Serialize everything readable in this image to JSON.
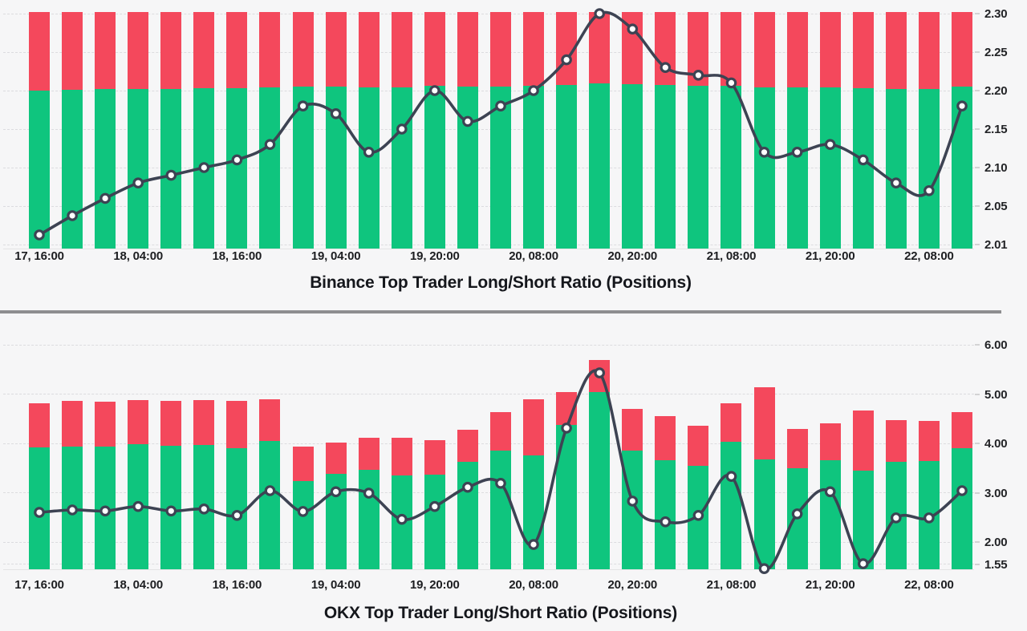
{
  "colors": {
    "long_green": "#0fc57e",
    "short_red": "#f4485c",
    "line": "#3d4353",
    "marker_fill": "#ffffff",
    "axis_text": "#222326",
    "title_text": "#15171c",
    "divider": "#8e8e90",
    "background": "#f6f6f7"
  },
  "chart_data": [
    {
      "type": "bar",
      "combo": "percent_stacked_bars_with_ratio_line",
      "title": "Binance Top Trader Long/Short Ratio (Positions)",
      "legend_position": "none",
      "grid": "dashed-horizontal",
      "y_axis": {
        "position": "right",
        "min": 2.01,
        "max": 2.3,
        "tick_labels": [
          "2.30",
          "2.25",
          "2.20",
          "2.15",
          "2.10",
          "2.05",
          "2.01"
        ]
      },
      "x_axis": {
        "tick_labels": [
          "17, 16:00",
          "18, 04:00",
          "18, 16:00",
          "19, 04:00",
          "19, 20:00",
          "20, 08:00",
          "20, 20:00",
          "21, 08:00",
          "21, 20:00",
          "22, 08:00"
        ],
        "tick_bar_indices": [
          0,
          3,
          6,
          9,
          12,
          15,
          18,
          21,
          24,
          27
        ]
      },
      "series": [
        {
          "name": "long-short-ratio-line",
          "type": "line",
          "values": [
            2.02,
            2.04,
            2.06,
            2.08,
            2.09,
            2.1,
            2.11,
            2.13,
            2.18,
            2.17,
            2.12,
            2.15,
            2.2,
            2.16,
            2.18,
            2.2,
            2.24,
            2.3,
            2.28,
            2.23,
            2.22,
            2.21,
            2.12,
            2.12,
            2.13,
            2.11,
            2.08,
            2.07,
            2.18
          ]
        },
        {
          "name": "long-percent-green-bar",
          "type": "bar",
          "unit": "percent",
          "values": [
            66.9,
            67.1,
            67.3,
            67.5,
            67.6,
            67.7,
            67.9,
            68.1,
            68.6,
            68.4,
            68.0,
            68.3,
            68.8,
            68.4,
            68.6,
            68.8,
            69.1,
            69.7,
            69.5,
            69.0,
            68.9,
            68.9,
            68.0,
            68.0,
            68.1,
            67.9,
            67.5,
            67.4,
            68.6
          ]
        },
        {
          "name": "short-percent-red-bar",
          "type": "bar",
          "unit": "percent_remainder_to_100",
          "values": "100 minus long-percent-green-bar"
        }
      ]
    },
    {
      "type": "bar",
      "combo": "stacked_bars_with_ratio_line",
      "title": "OKX Top Trader Long/Short Ratio (Positions)",
      "legend_position": "none",
      "grid": "dashed-horizontal",
      "y_axis": {
        "position": "right",
        "min": 1.55,
        "max": 6.0,
        "tick_labels": [
          "6.00",
          "5.00",
          "4.00",
          "3.00",
          "2.00",
          "1.55"
        ]
      },
      "x_axis": {
        "tick_labels": [
          "17, 16:00",
          "18, 04:00",
          "18, 16:00",
          "19, 04:00",
          "19, 20:00",
          "20, 08:00",
          "20, 20:00",
          "21, 08:00",
          "21, 20:00",
          "22, 08:00"
        ],
        "tick_bar_indices": [
          0,
          3,
          6,
          9,
          12,
          15,
          18,
          21,
          24,
          27
        ]
      },
      "series": [
        {
          "name": "long-short-ratio-line",
          "type": "line",
          "values": [
            2.6,
            2.65,
            2.63,
            2.72,
            2.63,
            2.67,
            2.54,
            3.04,
            2.62,
            3.02,
            2.99,
            2.46,
            2.72,
            3.11,
            3.19,
            1.95,
            4.31,
            5.43,
            2.83,
            2.41,
            2.54,
            3.33,
            1.46,
            2.57,
            3.02,
            1.56,
            2.49,
            2.49,
            3.04
          ]
        },
        {
          "name": "green-bar-top-axis-value",
          "type": "bar",
          "unit": "axis",
          "values": [
            3.92,
            3.93,
            3.93,
            3.98,
            3.95,
            3.97,
            3.9,
            4.05,
            3.24,
            3.38,
            3.46,
            3.35,
            3.37,
            3.62,
            3.86,
            3.76,
            4.37,
            5.04,
            3.86,
            3.66,
            3.55,
            4.03,
            3.67,
            3.5,
            3.66,
            3.45,
            3.63,
            3.64,
            3.9
          ]
        },
        {
          "name": "total-bar-top-axis-value",
          "type": "bar",
          "unit": "axis",
          "values": [
            4.81,
            4.86,
            4.85,
            4.88,
            4.86,
            4.88,
            4.86,
            4.89,
            3.93,
            4.01,
            4.11,
            4.11,
            4.07,
            4.28,
            4.63,
            4.89,
            5.04,
            5.69,
            4.7,
            4.55,
            4.36,
            4.81,
            5.14,
            4.29,
            4.4,
            4.66,
            4.47,
            4.46,
            4.64
          ]
        }
      ]
    }
  ]
}
